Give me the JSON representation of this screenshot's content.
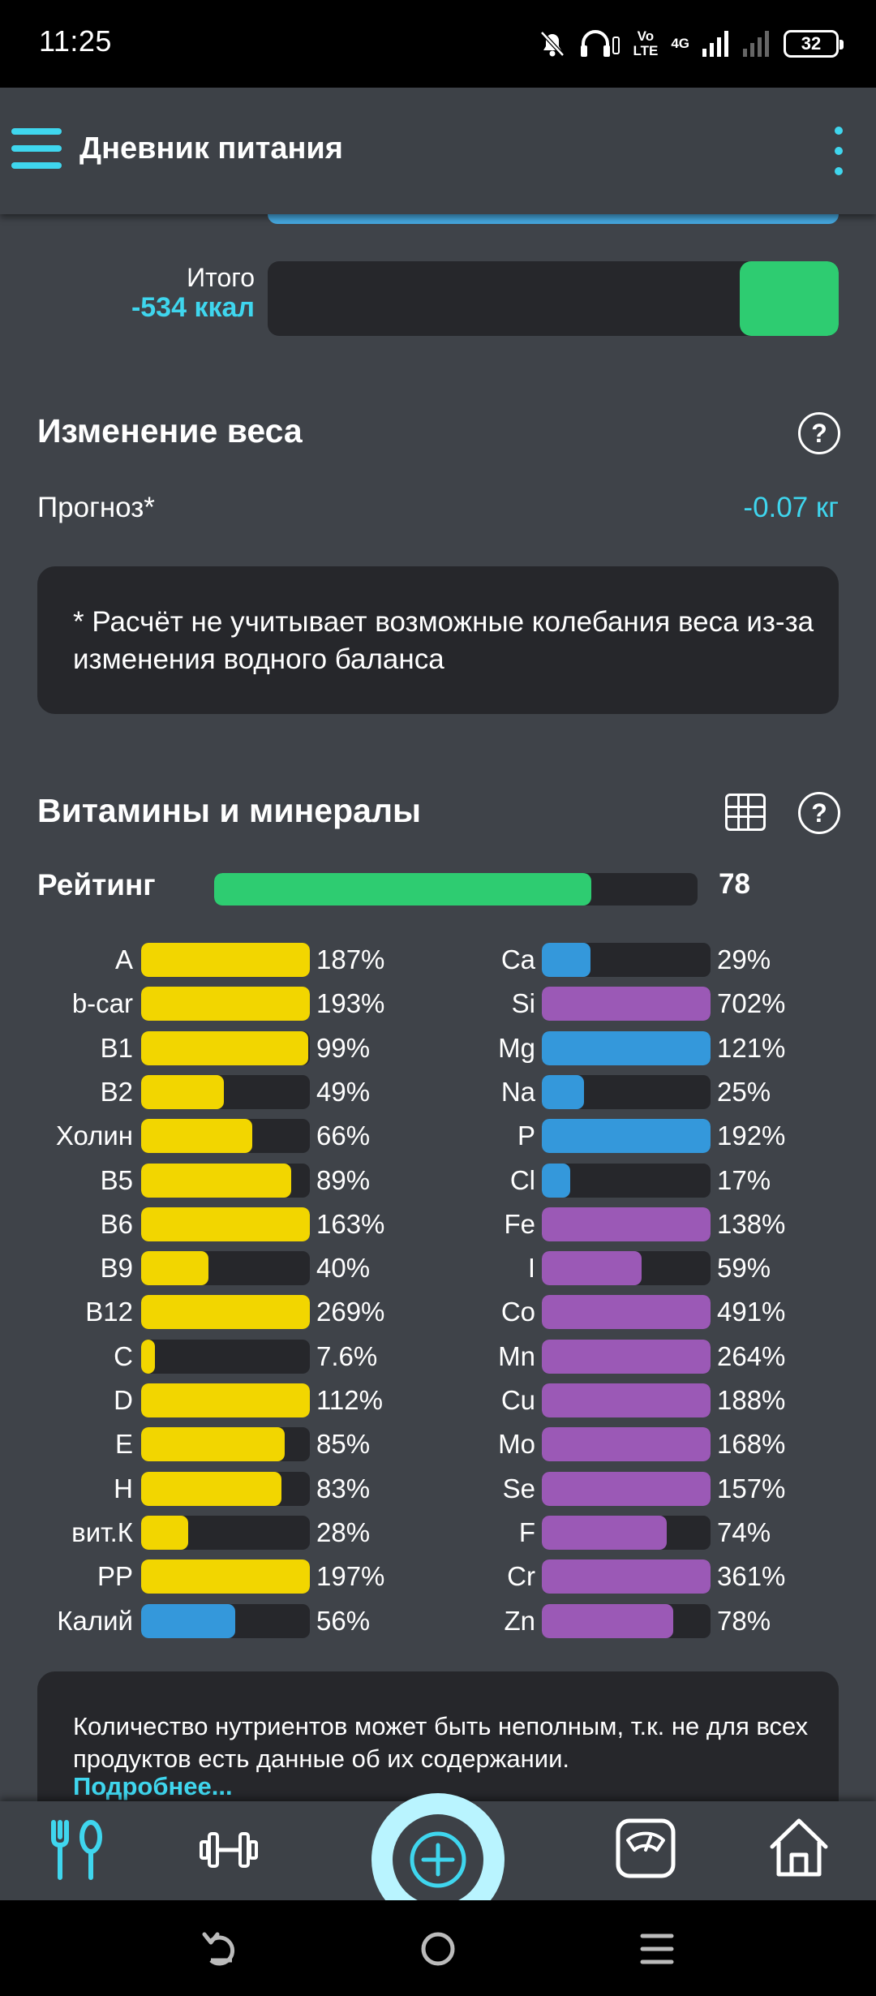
{
  "status_bar": {
    "time": "11:25",
    "volte_top": "Vo",
    "volte_bottom": "LTE",
    "network": "4G",
    "battery": "32"
  },
  "app_bar": {
    "title": "Дневник питания"
  },
  "energy": {
    "total_label": "Итого",
    "total_value": "-534 ккал",
    "total_fill_fraction": 0.174
  },
  "weight": {
    "title": "Изменение веса",
    "forecast_label": "Прогноз*",
    "forecast_value": "-0.07 кг",
    "note": "* Расчёт не учитывает возможные колебания веса из-за изменения водного баланса"
  },
  "vitamins": {
    "title": "Витамины и минералы",
    "rating_label": "Рейтинг",
    "rating_value": "78",
    "rating_fraction": 0.78,
    "colors": {
      "vitamin": "#f2d600",
      "mineral_blue": "#3498db",
      "mineral_purple": "#9b59b6"
    },
    "left": [
      {
        "name": "A",
        "pct": "187%",
        "fill": 1.0,
        "color": "yellow"
      },
      {
        "name": "b-car",
        "pct": "193%",
        "fill": 1.0,
        "color": "yellow"
      },
      {
        "name": "B1",
        "pct": "99%",
        "fill": 0.99,
        "color": "yellow"
      },
      {
        "name": "B2",
        "pct": "49%",
        "fill": 0.49,
        "color": "yellow"
      },
      {
        "name": "Холин",
        "pct": "66%",
        "fill": 0.66,
        "color": "yellow"
      },
      {
        "name": "B5",
        "pct": "89%",
        "fill": 0.89,
        "color": "yellow"
      },
      {
        "name": "B6",
        "pct": "163%",
        "fill": 1.0,
        "color": "yellow"
      },
      {
        "name": "B9",
        "pct": "40%",
        "fill": 0.4,
        "color": "yellow"
      },
      {
        "name": "B12",
        "pct": "269%",
        "fill": 1.0,
        "color": "yellow"
      },
      {
        "name": "C",
        "pct": "7.6%",
        "fill": 0.076,
        "color": "yellow"
      },
      {
        "name": "D",
        "pct": "112%",
        "fill": 1.0,
        "color": "yellow"
      },
      {
        "name": "E",
        "pct": "85%",
        "fill": 0.85,
        "color": "yellow"
      },
      {
        "name": "H",
        "pct": "83%",
        "fill": 0.83,
        "color": "yellow"
      },
      {
        "name": "вит.К",
        "pct": "28%",
        "fill": 0.28,
        "color": "yellow"
      },
      {
        "name": "PP",
        "pct": "197%",
        "fill": 1.0,
        "color": "yellow"
      },
      {
        "name": "Калий",
        "pct": "56%",
        "fill": 0.56,
        "color": "blue"
      }
    ],
    "right": [
      {
        "name": "Ca",
        "pct": "29%",
        "fill": 0.29,
        "color": "blue"
      },
      {
        "name": "Si",
        "pct": "702%",
        "fill": 1.0,
        "color": "purple"
      },
      {
        "name": "Mg",
        "pct": "121%",
        "fill": 1.0,
        "color": "blue"
      },
      {
        "name": "Na",
        "pct": "25%",
        "fill": 0.25,
        "color": "blue"
      },
      {
        "name": "P",
        "pct": "192%",
        "fill": 1.0,
        "color": "blue"
      },
      {
        "name": "Cl",
        "pct": "17%",
        "fill": 0.17,
        "color": "blue"
      },
      {
        "name": "Fe",
        "pct": "138%",
        "fill": 1.0,
        "color": "purple"
      },
      {
        "name": "I",
        "pct": "59%",
        "fill": 0.59,
        "color": "purple"
      },
      {
        "name": "Co",
        "pct": "491%",
        "fill": 1.0,
        "color": "purple"
      },
      {
        "name": "Mn",
        "pct": "264%",
        "fill": 1.0,
        "color": "purple"
      },
      {
        "name": "Cu",
        "pct": "188%",
        "fill": 1.0,
        "color": "purple"
      },
      {
        "name": "Mo",
        "pct": "168%",
        "fill": 1.0,
        "color": "purple"
      },
      {
        "name": "Se",
        "pct": "157%",
        "fill": 1.0,
        "color": "purple"
      },
      {
        "name": "F",
        "pct": "74%",
        "fill": 0.74,
        "color": "purple"
      },
      {
        "name": "Cr",
        "pct": "361%",
        "fill": 1.0,
        "color": "purple"
      },
      {
        "name": "Zn",
        "pct": "78%",
        "fill": 0.78,
        "color": "purple"
      }
    ],
    "info_text": "Количество нутриентов может быть неполным, т.к. не для всех продуктов есть данные об их содержании.",
    "info_link": "Подробнее..."
  },
  "bottom_nav": {
    "icons": [
      "fork-spoon-icon",
      "dumbbell-icon",
      "add-icon",
      "scale-icon",
      "home-icon"
    ]
  },
  "accent_color": "#3fd6ee"
}
